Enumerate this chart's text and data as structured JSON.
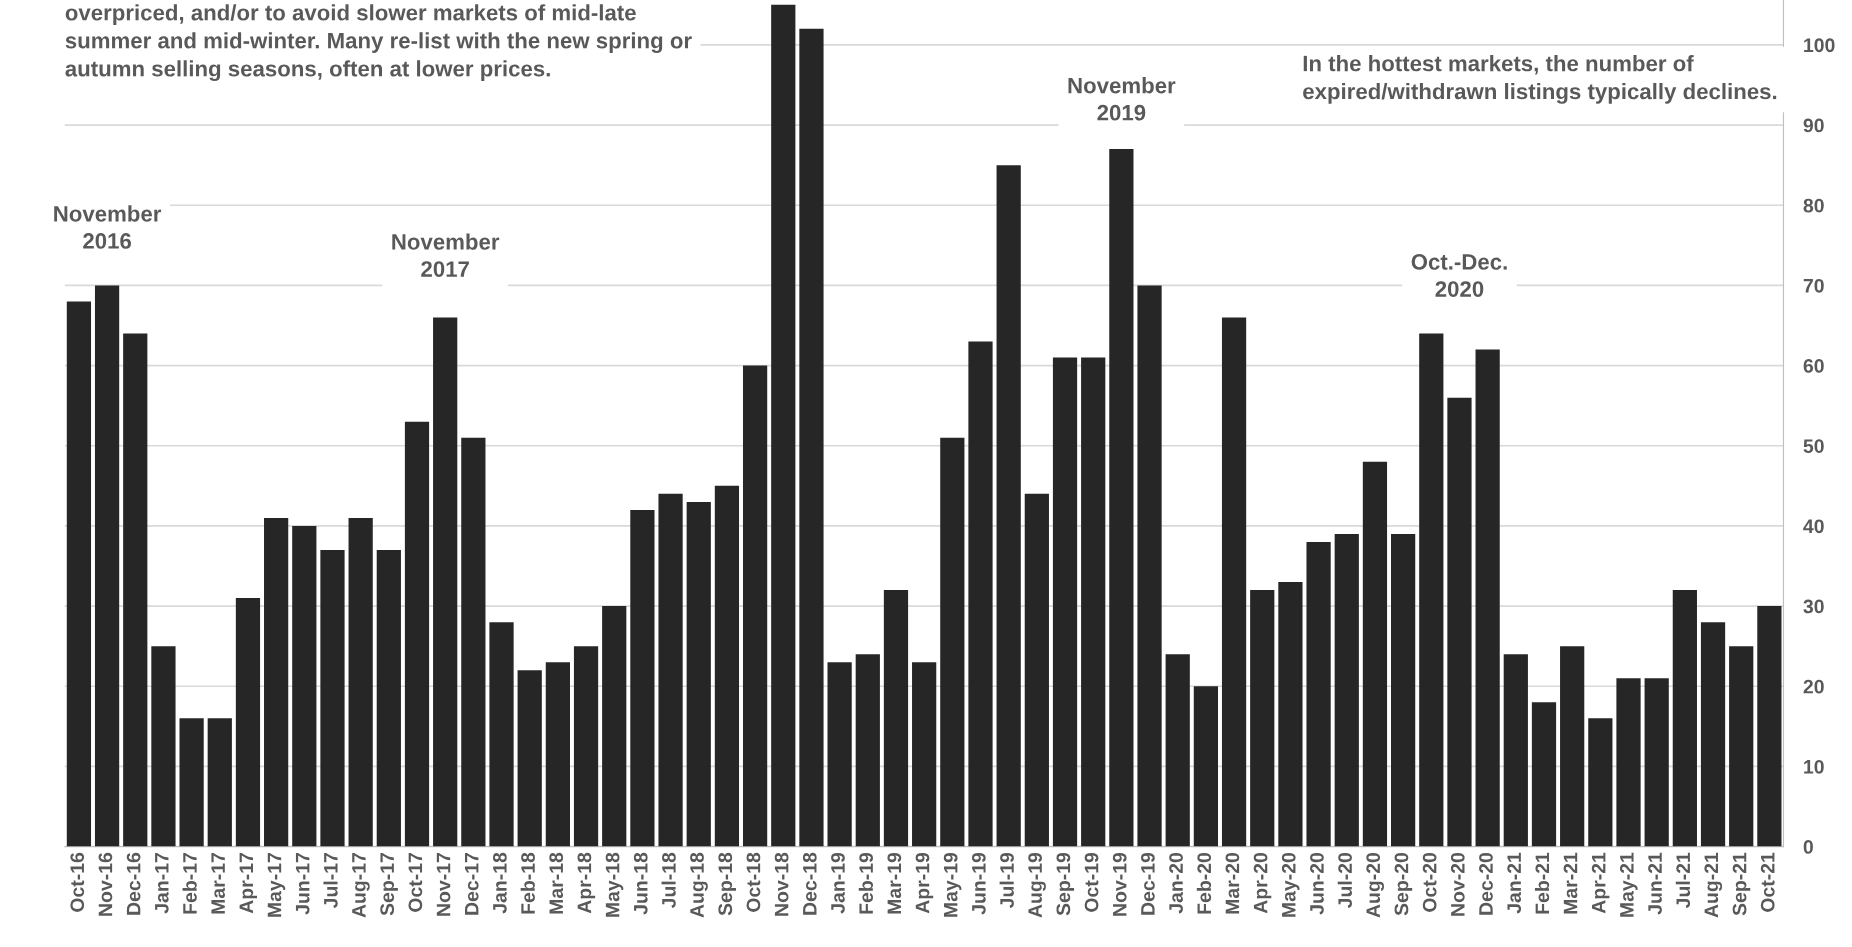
{
  "chart_data": {
    "type": "bar",
    "categories": [
      "Oct-16",
      "Nov-16",
      "Dec-16",
      "Jan-17",
      "Feb-17",
      "Mar-17",
      "Apr-17",
      "May-17",
      "Jun-17",
      "Jul-17",
      "Aug-17",
      "Sep-17",
      "Oct-17",
      "Nov-17",
      "Dec-17",
      "Jan-18",
      "Feb-18",
      "Mar-18",
      "Apr-18",
      "May-18",
      "Jun-18",
      "Jul-18",
      "Aug-18",
      "Sep-18",
      "Oct-18",
      "Nov-18",
      "Dec-18",
      "Jan-19",
      "Feb-19",
      "Mar-19",
      "Apr-19",
      "May-19",
      "Jun-19",
      "Jul-19",
      "Aug-19",
      "Sep-19",
      "Oct-19",
      "Nov-19",
      "Dec-19",
      "Jan-20",
      "Feb-20",
      "Mar-20",
      "Apr-20",
      "May-20",
      "Jun-20",
      "Jul-20",
      "Aug-20",
      "Sep-20",
      "Oct-20",
      "Nov-20",
      "Dec-20",
      "Jan-21",
      "Feb-21",
      "Mar-21",
      "Apr-21",
      "May-21",
      "Jun-21",
      "Jul-21",
      "Aug-21",
      "Sep-21",
      "Oct-21"
    ],
    "values": [
      68,
      70,
      64,
      25,
      16,
      16,
      31,
      41,
      40,
      37,
      41,
      37,
      53,
      66,
      51,
      28,
      22,
      23,
      25,
      30,
      42,
      44,
      43,
      45,
      60,
      105,
      102,
      23,
      24,
      32,
      23,
      51,
      63,
      85,
      44,
      61,
      61,
      87,
      70,
      24,
      20,
      66,
      32,
      33,
      38,
      39,
      48,
      39,
      64,
      56,
      62,
      24,
      18,
      25,
      16,
      21,
      21,
      32,
      28,
      25,
      30
    ],
    "color": "#262626",
    "ylim": [
      0,
      105.6
    ],
    "yticks": [
      0,
      10,
      20,
      30,
      40,
      50,
      60,
      70,
      80,
      90,
      100
    ],
    "grid": "y",
    "annotations": [
      "overpriced, and/or to avoid slower markets of mid-late summer and mid-winter. Many re-list with the new spring or autumn selling seasons, often at lower prices.",
      "In the hottest markets, the number of expired/withdrawn listings typically declines.",
      "November\n2016",
      "November\n2017",
      "November\n2019",
      "Oct.-Dec.\n2020"
    ]
  }
}
